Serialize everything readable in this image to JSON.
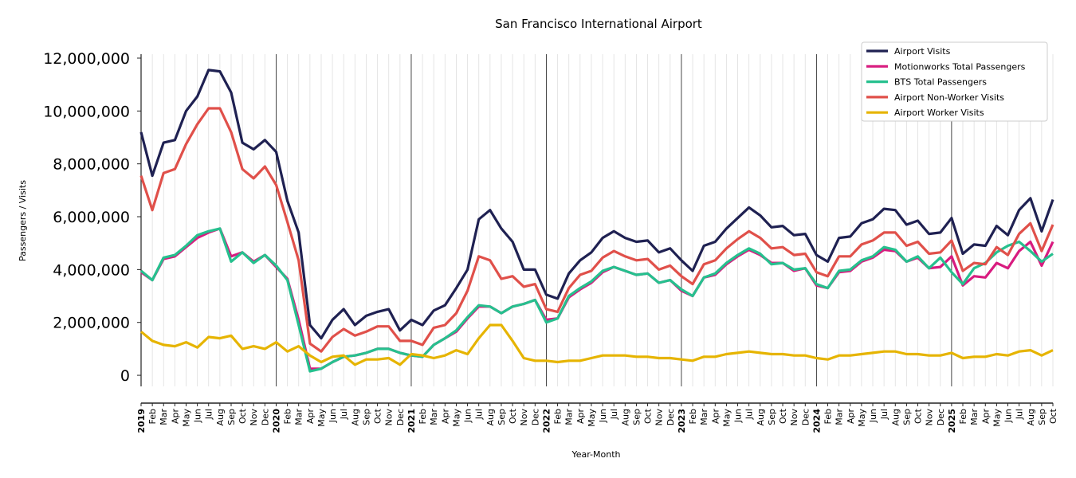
{
  "chart_data": {
    "type": "line",
    "title": "San Francisco International Airport",
    "xlabel": "Year-Month",
    "ylabel": "Passengers / Visits",
    "ylim": [
      -420000,
      12150000
    ],
    "yticks": [
      0,
      2000000,
      4000000,
      6000000,
      8000000,
      10000000,
      12000000
    ],
    "ytick_labels": [
      "0",
      "2,000,000",
      "4,000,000",
      "6,000,000",
      "8,000,000",
      "10,000,000",
      "12,000,000"
    ],
    "grid": "vertical monthly gridlines, bold lines at each January",
    "legend_position": "top-right",
    "x_start": "2019-01",
    "x_labels": [
      "2019",
      "Feb",
      "Mar",
      "Apr",
      "May",
      "Jun",
      "Jul",
      "Aug",
      "Sep",
      "Oct",
      "Nov",
      "Dec",
      "2020",
      "Feb",
      "Mar",
      "Apr",
      "May",
      "Jun",
      "Jul",
      "Aug",
      "Sep",
      "Oct",
      "Nov",
      "Dec",
      "2021",
      "Feb",
      "Mar",
      "Apr",
      "May",
      "Jun",
      "Jul",
      "Aug",
      "Sep",
      "Oct",
      "Nov",
      "Dec",
      "2022",
      "Feb",
      "Mar",
      "Apr",
      "May",
      "Jun",
      "Jul",
      "Aug",
      "Sep",
      "Oct",
      "Nov",
      "Dec",
      "2023",
      "Feb",
      "Mar",
      "Apr",
      "May",
      "Jun",
      "Jul",
      "Aug",
      "Sep",
      "Oct",
      "Nov",
      "Dec",
      "2024",
      "Feb",
      "Mar",
      "Apr",
      "May",
      "Jun",
      "Jul",
      "Aug",
      "Sep",
      "Oct",
      "Nov",
      "Dec",
      "2025",
      "Feb",
      "Mar",
      "Apr",
      "May",
      "Jun",
      "Jul",
      "Aug",
      "Sep",
      "Oct"
    ],
    "series": [
      {
        "name": "Airport Visits",
        "color": "#1f2152",
        "values_millions": [
          9.2,
          7.55,
          8.8,
          8.9,
          10.0,
          10.55,
          11.55,
          11.5,
          10.7,
          8.8,
          8.55,
          8.9,
          8.45,
          6.6,
          5.4,
          1.9,
          1.4,
          2.1,
          2.5,
          1.9,
          2.25,
          2.4,
          2.5,
          1.7,
          2.1,
          1.9,
          2.45,
          2.65,
          3.3,
          4.0,
          5.9,
          6.25,
          5.55,
          5.05,
          4.0,
          4.0,
          3.05,
          2.9,
          3.85,
          4.35,
          4.65,
          5.2,
          5.45,
          5.2,
          5.05,
          5.1,
          4.65,
          4.8,
          4.35,
          3.95,
          4.9,
          5.05,
          5.55,
          5.95,
          6.35,
          6.05,
          5.6,
          5.65,
          5.3,
          5.35,
          4.55,
          4.3,
          5.2,
          5.25,
          5.75,
          5.9,
          6.3,
          6.25,
          5.7,
          5.85,
          5.35,
          5.4,
          5.95,
          4.6,
          4.95,
          4.9,
          5.65,
          5.3,
          6.25,
          6.7,
          5.45,
          6.65
        ]
      },
      {
        "name": "Motionworks Total Passengers",
        "color": "#d81b7f",
        "values_millions": [
          3.9,
          3.6,
          4.4,
          4.5,
          4.85,
          5.2,
          5.4,
          5.55,
          4.5,
          4.65,
          4.3,
          4.55,
          4.1,
          3.65,
          2.1,
          0.25,
          0.25,
          0.5,
          0.7,
          0.75,
          0.85,
          1.0,
          1.0,
          0.85,
          0.75,
          0.7,
          1.15,
          1.4,
          1.65,
          2.15,
          2.6,
          2.6,
          2.35,
          2.6,
          2.7,
          2.85,
          2.1,
          2.15,
          2.95,
          3.25,
          3.5,
          3.9,
          4.1,
          3.95,
          3.8,
          3.85,
          3.5,
          3.6,
          3.2,
          3.0,
          3.7,
          3.8,
          4.2,
          4.5,
          4.75,
          4.55,
          4.25,
          4.25,
          3.95,
          4.05,
          3.4,
          3.3,
          3.9,
          3.95,
          4.3,
          4.45,
          4.75,
          4.7,
          4.3,
          4.45,
          4.05,
          4.1,
          4.5,
          3.4,
          3.75,
          3.7,
          4.25,
          4.05,
          4.7,
          5.05,
          4.15,
          5.05
        ]
      },
      {
        "name": "BTS Total Passengers",
        "color": "#26c08e",
        "values_millions": [
          3.95,
          3.6,
          4.45,
          4.55,
          4.9,
          5.3,
          5.45,
          5.55,
          4.3,
          4.65,
          4.25,
          4.55,
          4.15,
          3.6,
          1.9,
          0.15,
          0.25,
          0.5,
          0.7,
          0.75,
          0.85,
          1.0,
          1.0,
          0.85,
          0.75,
          0.7,
          1.15,
          1.4,
          1.7,
          2.2,
          2.65,
          2.6,
          2.35,
          2.6,
          2.7,
          2.85,
          2.0,
          2.15,
          3.0,
          3.3,
          3.55,
          3.95,
          4.1,
          3.95,
          3.8,
          3.85,
          3.5,
          3.6,
          3.25,
          3.0,
          3.7,
          3.85,
          4.25,
          4.55,
          4.8,
          4.6,
          4.2,
          4.25,
          4.0,
          4.05,
          3.45,
          3.3,
          3.95,
          4.0,
          4.35,
          4.5,
          4.85,
          4.75,
          4.3,
          4.5,
          4.05,
          4.45,
          3.9,
          3.45,
          4.05,
          4.25,
          4.65,
          4.9,
          5.05,
          4.7,
          4.3,
          4.6
        ]
      },
      {
        "name": "Airport Non-Worker Visits",
        "color": "#e0504a",
        "values_millions": [
          7.55,
          6.25,
          7.65,
          7.8,
          8.75,
          9.5,
          10.1,
          10.1,
          9.2,
          7.8,
          7.45,
          7.9,
          7.2,
          5.8,
          4.35,
          1.2,
          0.9,
          1.45,
          1.75,
          1.5,
          1.65,
          1.85,
          1.85,
          1.3,
          1.3,
          1.15,
          1.8,
          1.9,
          2.35,
          3.2,
          4.5,
          4.35,
          3.65,
          3.75,
          3.35,
          3.45,
          2.5,
          2.4,
          3.3,
          3.8,
          3.95,
          4.45,
          4.7,
          4.5,
          4.35,
          4.4,
          4.0,
          4.15,
          3.75,
          3.45,
          4.2,
          4.35,
          4.8,
          5.15,
          5.45,
          5.2,
          4.8,
          4.85,
          4.55,
          4.6,
          3.9,
          3.75,
          4.5,
          4.5,
          4.95,
          5.1,
          5.4,
          5.4,
          4.9,
          5.05,
          4.6,
          4.65,
          5.1,
          3.95,
          4.25,
          4.2,
          4.85,
          4.55,
          5.35,
          5.75,
          4.7,
          5.7
        ]
      },
      {
        "name": "Airport Worker Visits",
        "color": "#e6b400",
        "values_millions": [
          1.65,
          1.3,
          1.15,
          1.1,
          1.25,
          1.05,
          1.45,
          1.4,
          1.5,
          1.0,
          1.1,
          1.0,
          1.25,
          0.9,
          1.1,
          0.75,
          0.5,
          0.7,
          0.75,
          0.4,
          0.6,
          0.6,
          0.65,
          0.4,
          0.8,
          0.75,
          0.65,
          0.75,
          0.95,
          0.8,
          1.4,
          1.9,
          1.9,
          1.3,
          0.65,
          0.55,
          0.55,
          0.5,
          0.55,
          0.55,
          0.65,
          0.75,
          0.75,
          0.75,
          0.7,
          0.7,
          0.65,
          0.65,
          0.6,
          0.55,
          0.7,
          0.7,
          0.8,
          0.85,
          0.9,
          0.85,
          0.8,
          0.8,
          0.75,
          0.75,
          0.65,
          0.6,
          0.75,
          0.75,
          0.8,
          0.85,
          0.9,
          0.9,
          0.8,
          0.8,
          0.75,
          0.75,
          0.85,
          0.65,
          0.7,
          0.7,
          0.8,
          0.75,
          0.9,
          0.95,
          0.75,
          0.95
        ]
      }
    ]
  }
}
